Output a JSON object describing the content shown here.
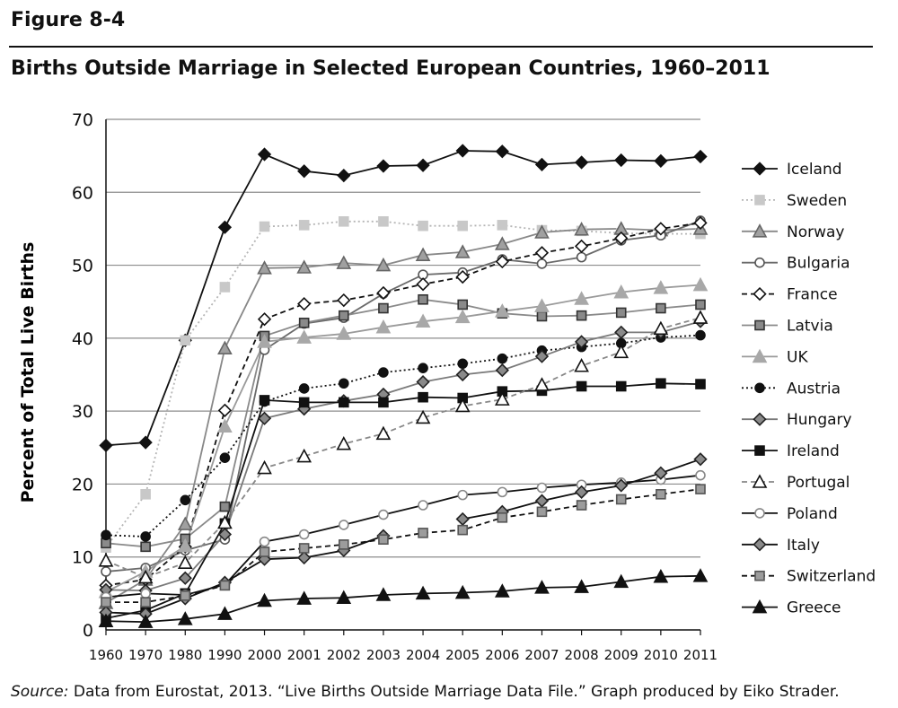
{
  "figure_label": "Figure 8-4",
  "source": {
    "lead": "Source:",
    "text": " Data from Eurostat, 2013. “Live Births Outside Marriage Data File.” Graph produced by Eiko Strader."
  },
  "chart_data": {
    "type": "line",
    "title": "Births Outside Marriage in Selected European Countries, 1960–2011",
    "xlabel": "",
    "ylabel": "Percent of Total Live Births",
    "x": [
      "1960",
      "1970",
      "1980",
      "1990",
      "2000",
      "2001",
      "2002",
      "2003",
      "2004",
      "2005",
      "2006",
      "2007",
      "2008",
      "2009",
      "2010",
      "2011"
    ],
    "ylim": [
      0,
      70
    ],
    "yticks": [
      "0",
      "10",
      "20",
      "30",
      "40",
      "50",
      "60",
      "70"
    ],
    "grid": "horizontal",
    "legend_position": "right",
    "series": [
      {
        "name": "Iceland",
        "color": "#111111",
        "dash": "solid",
        "marker": "diamond-filled",
        "values": [
          25.3,
          25.7,
          39.7,
          55.2,
          65.2,
          62.9,
          62.3,
          63.6,
          63.7,
          65.7,
          65.6,
          63.8,
          64.1,
          64.4,
          64.3,
          64.9
        ]
      },
      {
        "name": "Sweden",
        "color": "#b5b5b5",
        "dash": "dotted",
        "marker": "square-light",
        "values": [
          11.3,
          18.6,
          39.7,
          47.0,
          55.3,
          55.5,
          56.0,
          56.0,
          55.4,
          55.4,
          55.5,
          54.8,
          54.7,
          54.4,
          54.3,
          54.3
        ]
      },
      {
        "name": "Norway",
        "color": "#888888",
        "dash": "solid",
        "marker": "triangle-gray",
        "values": [
          3.7,
          6.9,
          14.5,
          38.6,
          49.6,
          49.7,
          50.3,
          50.0,
          51.4,
          51.8,
          52.9,
          54.5,
          54.9,
          55.0,
          54.8,
          55.0
        ]
      },
      {
        "name": "Bulgaria",
        "color": "#6a6a6a",
        "dash": "solid",
        "marker": "circle-open",
        "values": [
          8.0,
          8.5,
          10.9,
          12.4,
          38.4,
          42.0,
          42.8,
          46.1,
          48.7,
          49.0,
          50.8,
          50.2,
          51.1,
          53.4,
          54.1,
          56.1
        ]
      },
      {
        "name": "France",
        "color": "#111111",
        "dash": "dashed",
        "marker": "diamond-open",
        "values": [
          6.1,
          6.9,
          11.4,
          30.1,
          42.6,
          44.7,
          45.2,
          46.2,
          47.4,
          48.4,
          50.5,
          51.7,
          52.6,
          53.7,
          55.0,
          55.8
        ]
      },
      {
        "name": "Latvia",
        "color": "#8a8a8a",
        "dash": "solid",
        "marker": "square-gray",
        "values": [
          11.9,
          11.4,
          12.5,
          16.9,
          40.3,
          42.1,
          43.1,
          44.1,
          45.3,
          44.6,
          43.4,
          43.0,
          43.1,
          43.5,
          44.1,
          44.6
        ]
      },
      {
        "name": "UK",
        "color": "#9a9a9a",
        "dash": "solid",
        "marker": "triangle-light",
        "values": [
          5.2,
          8.0,
          11.5,
          27.9,
          39.5,
          40.1,
          40.6,
          41.5,
          42.3,
          42.9,
          43.7,
          44.4,
          45.4,
          46.3,
          46.9,
          47.3
        ]
      },
      {
        "name": "Austria",
        "color": "#111111",
        "dash": "dotted",
        "marker": "circle-filled",
        "values": [
          13.0,
          12.8,
          17.8,
          23.6,
          31.3,
          33.1,
          33.8,
          35.3,
          35.9,
          36.5,
          37.2,
          38.3,
          38.8,
          39.3,
          40.1,
          40.4
        ]
      },
      {
        "name": "Hungary",
        "color": "#7a7a7a",
        "dash": "solid",
        "marker": "diamond-gray",
        "values": [
          5.5,
          5.4,
          7.1,
          13.1,
          29.0,
          30.3,
          31.4,
          32.3,
          34.0,
          35.0,
          35.6,
          37.5,
          39.5,
          40.8,
          40.8,
          42.3
        ]
      },
      {
        "name": "Ireland",
        "color": "#111111",
        "dash": "solid",
        "marker": "square-filled",
        "values": [
          1.6,
          2.7,
          5.0,
          14.6,
          31.5,
          31.2,
          31.2,
          31.2,
          31.9,
          31.8,
          32.7,
          32.8,
          33.4,
          33.4,
          33.8,
          33.7
        ]
      },
      {
        "name": "Portugal",
        "color": "#888888",
        "dash": "dashed",
        "marker": "triangle-open",
        "values": [
          9.5,
          7.2,
          9.2,
          14.7,
          22.2,
          23.8,
          25.5,
          26.9,
          29.1,
          30.7,
          31.6,
          33.6,
          36.2,
          38.1,
          41.3,
          42.8
        ]
      },
      {
        "name": "Poland",
        "color": "#111111",
        "dash": "solid",
        "marker": "circle-open-light",
        "values": [
          4.5,
          5.0,
          4.8,
          6.2,
          12.1,
          13.1,
          14.4,
          15.8,
          17.1,
          18.5,
          18.9,
          19.5,
          19.9,
          20.2,
          20.6,
          21.2
        ]
      },
      {
        "name": "Italy",
        "color": "#111111",
        "dash": "solid",
        "marker": "diamond-gray",
        "values": [
          2.4,
          2.2,
          4.3,
          6.5,
          9.7,
          9.9,
          10.9,
          12.9,
          null,
          15.2,
          16.2,
          17.7,
          18.9,
          19.8,
          21.5,
          23.4
        ]
      },
      {
        "name": "Switzerland",
        "color": "#111111",
        "dash": "dashed",
        "marker": "square-gray-light",
        "values": [
          3.8,
          3.8,
          4.7,
          6.1,
          10.7,
          11.2,
          11.7,
          12.4,
          13.3,
          13.7,
          15.4,
          16.2,
          17.1,
          17.9,
          18.6,
          19.3
        ]
      },
      {
        "name": "Greece",
        "color": "#111111",
        "dash": "solid",
        "marker": "triangle-filled",
        "values": [
          1.2,
          1.1,
          1.5,
          2.2,
          4.0,
          4.3,
          4.4,
          4.8,
          5.0,
          5.1,
          5.3,
          5.8,
          5.9,
          6.6,
          7.3,
          7.4
        ]
      }
    ]
  }
}
